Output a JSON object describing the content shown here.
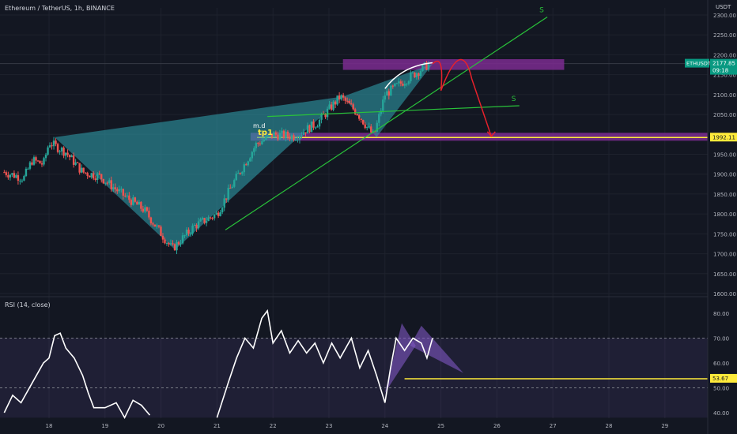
{
  "header": {
    "title": "Ethereum / TetherUS, 1h, BINANCE"
  },
  "rsi_header": {
    "title": "RSI (14, close)"
  },
  "price_axis": {
    "currency": "USDT",
    "ticks": [
      "2300.00",
      "2250.00",
      "2200.00",
      "2150.00",
      "2100.00",
      "2050.00",
      "1950.00",
      "1900.00",
      "1850.00",
      "1800.00",
      "1750.00",
      "1700.00",
      "1650.00",
      "1600.00"
    ]
  },
  "rsi_axis": {
    "ticks": [
      "80.00",
      "70.00",
      "60.00",
      "50.00",
      "40.00"
    ]
  },
  "time_axis": {
    "ticks": [
      "18",
      "19",
      "20",
      "21",
      "22",
      "23",
      "24",
      "25",
      "26",
      "27",
      "28",
      "29"
    ]
  },
  "badges": {
    "symbol": "ETHUSDT",
    "last_price": "2177.85",
    "countdown": "09:18",
    "level": "1992.11",
    "rsi_level": "53.67"
  },
  "annotations": {
    "s_upper": "S",
    "s_lower": "S",
    "md": "m.d",
    "tp": "tp1"
  },
  "colors": {
    "background": "#131722",
    "up": "#26a69a",
    "down": "#ef5350",
    "pattern": "#2f9aa6",
    "zone": "#7b2c8f",
    "trend": "#29c23a",
    "forecast": "#e8212b",
    "level": "#ffeb3b",
    "rsi": "#ffffff",
    "rsi_band": "#7e57c2"
  },
  "chart_data": [
    {
      "type": "candlestick",
      "title": "Ethereum / TetherUS, 1h, BINANCE",
      "x_range": [
        17.2,
        29.8
      ],
      "ylim": [
        1600,
        2320
      ],
      "last_price": 2177.85,
      "level": 1992.11,
      "close_path": [
        {
          "x": 17.2,
          "y": 1905
        },
        {
          "x": 17.55,
          "y": 1890
        },
        {
          "x": 17.7,
          "y": 1935
        },
        {
          "x": 17.9,
          "y": 1925
        },
        {
          "x": 18.0,
          "y": 1980
        },
        {
          "x": 18.3,
          "y": 1955
        },
        {
          "x": 18.6,
          "y": 1905
        },
        {
          "x": 18.9,
          "y": 1895
        },
        {
          "x": 19.3,
          "y": 1850
        },
        {
          "x": 19.7,
          "y": 1810
        },
        {
          "x": 20.2,
          "y": 1712
        },
        {
          "x": 20.6,
          "y": 1770
        },
        {
          "x": 21.0,
          "y": 1800
        },
        {
          "x": 21.3,
          "y": 1880
        },
        {
          "x": 21.7,
          "y": 1975
        },
        {
          "x": 22.0,
          "y": 2000
        },
        {
          "x": 22.4,
          "y": 1995
        },
        {
          "x": 22.8,
          "y": 2030
        },
        {
          "x": 23.2,
          "y": 2095
        },
        {
          "x": 23.5,
          "y": 2055
        },
        {
          "x": 23.8,
          "y": 1995
        },
        {
          "x": 24.0,
          "y": 2100
        },
        {
          "x": 24.4,
          "y": 2140
        },
        {
          "x": 24.8,
          "y": 2178
        }
      ],
      "zones": [
        {
          "from": 2185,
          "to": 2170,
          "x_start": 23.25,
          "x_end": 24.8
        },
        {
          "from": 2000,
          "to": 1992,
          "x_start": 21.6,
          "x_end": 29.8
        }
      ],
      "patterns": [
        {
          "type": "bat",
          "points": [
            {
              "x": 18.1,
              "y": 1993
            },
            {
              "x": 20.25,
              "y": 1710
            },
            {
              "x": 23.25,
              "y": 2095
            },
            {
              "x": 23.85,
              "y": 1993
            },
            {
              "x": 24.85,
              "y": 2177
            }
          ]
        }
      ],
      "trendlines": [
        {
          "label": "S",
          "from": {
            "x": 21.15,
            "y": 1760
          },
          "to": {
            "x": 26.9,
            "y": 2295
          }
        },
        {
          "label": "S",
          "from": {
            "x": 21.9,
            "y": 2045
          },
          "to": {
            "x": 26.4,
            "y": 2072
          }
        }
      ],
      "forecast_path": [
        {
          "x": 24.85,
          "y": 2177
        },
        {
          "x": 25.0,
          "y": 2110
        },
        {
          "x": 25.3,
          "y": 2160
        },
        {
          "x": 25.55,
          "y": 2140
        },
        {
          "x": 25.9,
          "y": 1995
        }
      ]
    },
    {
      "type": "line",
      "title": "RSI (14, close)",
      "ylim": [
        38,
        84
      ],
      "bands": [
        30,
        50,
        70
      ],
      "level": 53.67,
      "series": [
        {
          "name": "RSI",
          "values": [
            {
              "x": 17.2,
              "y": 40
            },
            {
              "x": 17.35,
              "y": 47
            },
            {
              "x": 17.5,
              "y": 44
            },
            {
              "x": 17.7,
              "y": 52
            },
            {
              "x": 17.9,
              "y": 60
            },
            {
              "x": 18.0,
              "y": 62
            },
            {
              "x": 18.1,
              "y": 71
            },
            {
              "x": 18.2,
              "y": 72
            },
            {
              "x": 18.3,
              "y": 66
            },
            {
              "x": 18.45,
              "y": 62
            },
            {
              "x": 18.6,
              "y": 55
            },
            {
              "x": 18.7,
              "y": 48
            },
            {
              "x": 18.8,
              "y": 42
            },
            {
              "x": 19.0,
              "y": 42
            },
            {
              "x": 19.2,
              "y": 44
            },
            {
              "x": 19.35,
              "y": 38
            },
            {
              "x": 19.5,
              "y": 45
            },
            {
              "x": 19.65,
              "y": 43
            },
            {
              "x": 19.8,
              "y": 39
            },
            {
              "x": 21.0,
              "y": 38
            },
            {
              "x": 21.2,
              "y": 52
            },
            {
              "x": 21.35,
              "y": 62
            },
            {
              "x": 21.5,
              "y": 70
            },
            {
              "x": 21.65,
              "y": 66
            },
            {
              "x": 21.8,
              "y": 78
            },
            {
              "x": 21.9,
              "y": 81
            },
            {
              "x": 22.0,
              "y": 68
            },
            {
              "x": 22.15,
              "y": 73
            },
            {
              "x": 22.3,
              "y": 64
            },
            {
              "x": 22.45,
              "y": 69
            },
            {
              "x": 22.6,
              "y": 64
            },
            {
              "x": 22.75,
              "y": 68
            },
            {
              "x": 22.9,
              "y": 60
            },
            {
              "x": 23.05,
              "y": 68
            },
            {
              "x": 23.2,
              "y": 62
            },
            {
              "x": 23.4,
              "y": 70
            },
            {
              "x": 23.55,
              "y": 58
            },
            {
              "x": 23.7,
              "y": 65
            },
            {
              "x": 23.85,
              "y": 55
            },
            {
              "x": 24.0,
              "y": 44
            },
            {
              "x": 24.1,
              "y": 58
            },
            {
              "x": 24.2,
              "y": 70
            },
            {
              "x": 24.35,
              "y": 65
            },
            {
              "x": 24.5,
              "y": 70
            },
            {
              "x": 24.65,
              "y": 68
            },
            {
              "x": 24.75,
              "y": 62
            },
            {
              "x": 24.85,
              "y": 70
            }
          ]
        }
      ]
    }
  ]
}
